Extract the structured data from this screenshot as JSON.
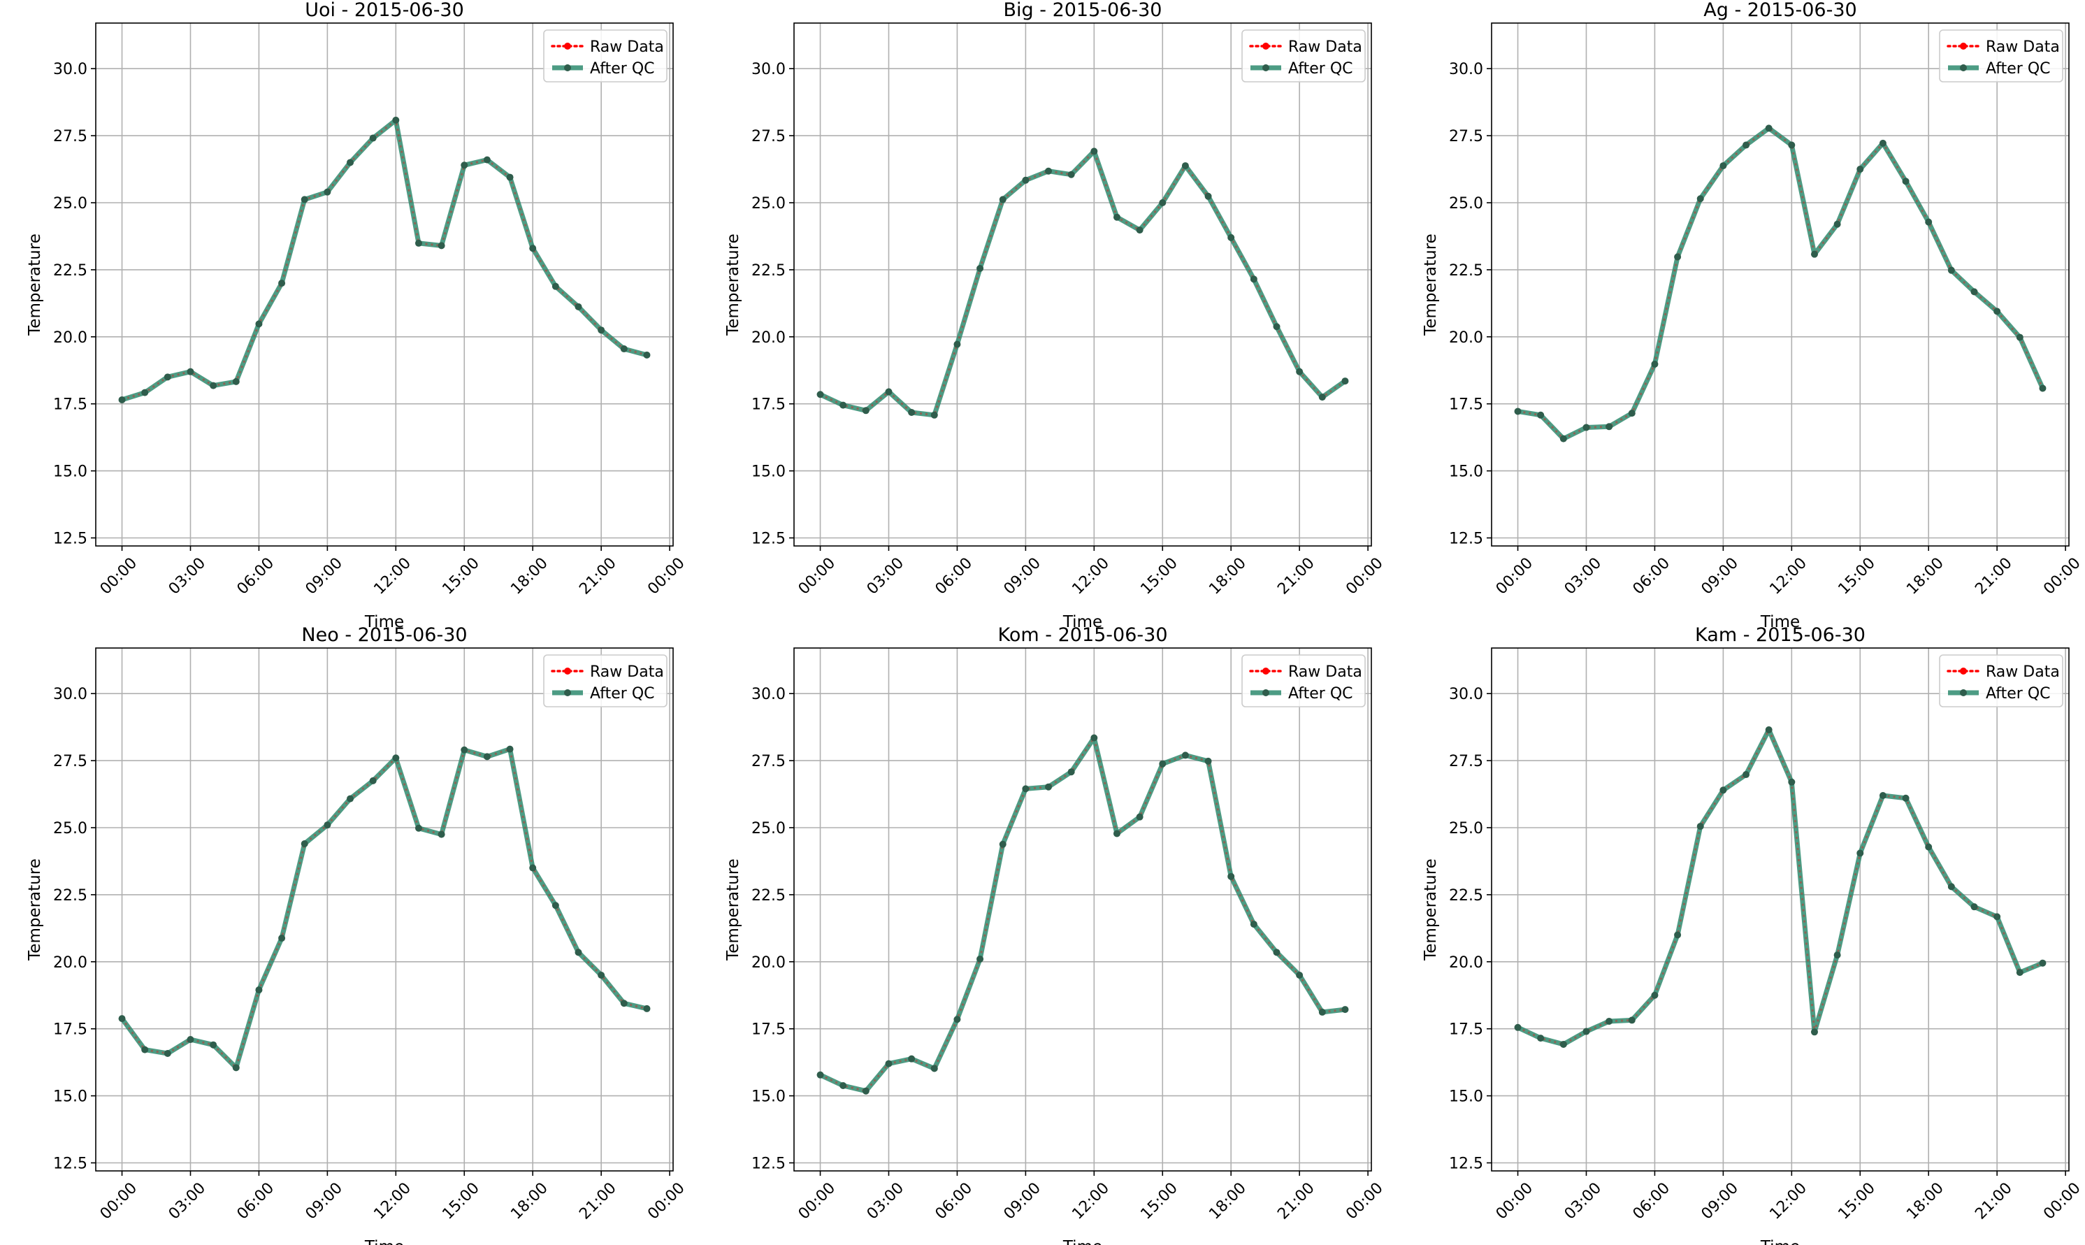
{
  "colors": {
    "raw": "#ff0000",
    "qc": "#2e8b6e",
    "grid": "#b0b0b0",
    "axis": "#000000",
    "legend_border": "#cccccc"
  },
  "legend": {
    "raw_label": "Raw Data",
    "qc_label": "After QC"
  },
  "axes_common": {
    "xlabel": "Time",
    "ylabel": "Temperature",
    "xlim_hours": [
      -1.15,
      24.15
    ],
    "ylim": [
      12.2,
      31.7
    ],
    "xticks": [
      "00:00",
      "03:00",
      "06:00",
      "09:00",
      "12:00",
      "15:00",
      "18:00",
      "21:00",
      "00:00"
    ],
    "xtick_hours": [
      0,
      3,
      6,
      9,
      12,
      15,
      18,
      21,
      24
    ],
    "yticks": [
      "12.5",
      "15.0",
      "17.5",
      "20.0",
      "22.5",
      "25.0",
      "27.5",
      "30.0"
    ],
    "ytick_values": [
      12.5,
      15.0,
      17.5,
      20.0,
      22.5,
      25.0,
      27.5,
      30.0
    ],
    "grid": true,
    "legend_position": "top-right"
  },
  "chart_data": [
    {
      "type": "line",
      "title": "Uoi - 2015-06-30",
      "x": [
        "00:00",
        "01:00",
        "02:00",
        "03:00",
        "04:00",
        "05:00",
        "06:00",
        "07:00",
        "08:00",
        "09:00",
        "10:00",
        "11:00",
        "12:00",
        "13:00",
        "14:00",
        "15:00",
        "16:00",
        "17:00",
        "18:00",
        "19:00",
        "20:00",
        "21:00",
        "22:00",
        "23:00"
      ],
      "series": [
        {
          "name": "Raw Data",
          "values": [
            17.65,
            17.92,
            18.5,
            18.7,
            18.18,
            18.33,
            20.48,
            22.0,
            25.12,
            25.4,
            26.5,
            27.41,
            28.08,
            23.49,
            23.4,
            26.4,
            26.6,
            25.95,
            23.3,
            21.88,
            21.12,
            20.25,
            19.55,
            19.32
          ]
        },
        {
          "name": "After QC",
          "values": [
            17.65,
            17.92,
            18.5,
            18.7,
            18.18,
            18.33,
            20.48,
            22.0,
            25.12,
            25.4,
            26.5,
            27.41,
            28.08,
            23.49,
            23.4,
            26.4,
            26.6,
            25.95,
            23.3,
            21.88,
            21.12,
            20.25,
            19.55,
            19.32
          ]
        }
      ]
    },
    {
      "type": "line",
      "title": "Big - 2015-06-30",
      "x": [
        "00:00",
        "01:00",
        "02:00",
        "03:00",
        "04:00",
        "05:00",
        "06:00",
        "07:00",
        "08:00",
        "09:00",
        "10:00",
        "11:00",
        "12:00",
        "13:00",
        "14:00",
        "15:00",
        "16:00",
        "17:00",
        "18:00",
        "19:00",
        "20:00",
        "21:00",
        "22:00",
        "23:00"
      ],
      "series": [
        {
          "name": "Raw Data",
          "values": [
            17.85,
            17.45,
            17.25,
            17.95,
            17.18,
            17.08,
            19.72,
            22.55,
            25.12,
            25.84,
            26.18,
            26.05,
            26.92,
            24.46,
            23.98,
            25.0,
            26.38,
            25.24,
            23.7,
            22.15,
            20.38,
            18.7,
            17.75,
            18.35
          ]
        },
        {
          "name": "After QC",
          "values": [
            17.85,
            17.45,
            17.25,
            17.95,
            17.18,
            17.08,
            19.72,
            22.55,
            25.12,
            25.84,
            26.18,
            26.05,
            26.92,
            24.46,
            23.98,
            25.0,
            26.38,
            25.24,
            23.7,
            22.15,
            20.38,
            18.7,
            17.75,
            18.35
          ]
        }
      ]
    },
    {
      "type": "line",
      "title": "Ag - 2015-06-30",
      "x": [
        "00:00",
        "01:00",
        "02:00",
        "03:00",
        "04:00",
        "05:00",
        "06:00",
        "07:00",
        "08:00",
        "09:00",
        "10:00",
        "11:00",
        "12:00",
        "13:00",
        "14:00",
        "15:00",
        "16:00",
        "17:00",
        "18:00",
        "19:00",
        "20:00",
        "21:00",
        "22:00",
        "23:00"
      ],
      "series": [
        {
          "name": "Raw Data",
          "values": [
            17.22,
            17.08,
            16.2,
            16.62,
            16.65,
            17.15,
            18.98,
            22.98,
            25.15,
            26.38,
            27.15,
            27.78,
            27.15,
            23.08,
            24.2,
            26.25,
            27.22,
            25.8,
            24.28,
            22.48,
            21.68,
            20.95,
            19.98,
            18.08
          ]
        },
        {
          "name": "After QC",
          "values": [
            17.22,
            17.08,
            16.2,
            16.62,
            16.65,
            17.15,
            18.98,
            22.98,
            25.15,
            26.38,
            27.15,
            27.78,
            27.15,
            23.08,
            24.2,
            26.25,
            27.22,
            25.8,
            24.28,
            22.48,
            21.68,
            20.95,
            19.98,
            18.08
          ]
        }
      ]
    },
    {
      "type": "line",
      "title": "Neo - 2015-06-30",
      "x": [
        "00:00",
        "01:00",
        "02:00",
        "03:00",
        "04:00",
        "05:00",
        "06:00",
        "07:00",
        "08:00",
        "09:00",
        "10:00",
        "11:00",
        "12:00",
        "13:00",
        "14:00",
        "15:00",
        "16:00",
        "17:00",
        "18:00",
        "19:00",
        "20:00",
        "21:00",
        "22:00",
        "23:00"
      ],
      "series": [
        {
          "name": "Raw Data",
          "values": [
            17.88,
            16.72,
            16.58,
            17.1,
            16.9,
            16.05,
            18.95,
            20.88,
            24.4,
            25.1,
            26.08,
            26.75,
            27.6,
            24.98,
            24.75,
            27.9,
            27.65,
            27.93,
            23.5,
            22.1,
            20.35,
            19.5,
            18.45,
            18.25
          ]
        },
        {
          "name": "After QC",
          "values": [
            17.88,
            16.72,
            16.58,
            17.1,
            16.9,
            16.05,
            18.95,
            20.88,
            24.4,
            25.1,
            26.08,
            26.75,
            27.6,
            24.98,
            24.75,
            27.9,
            27.65,
            27.93,
            23.5,
            22.1,
            20.35,
            19.5,
            18.45,
            18.25
          ]
        }
      ]
    },
    {
      "type": "line",
      "title": "Kom - 2015-06-30",
      "x": [
        "00:00",
        "01:00",
        "02:00",
        "03:00",
        "04:00",
        "05:00",
        "06:00",
        "07:00",
        "08:00",
        "09:00",
        "10:00",
        "11:00",
        "12:00",
        "13:00",
        "14:00",
        "15:00",
        "16:00",
        "17:00",
        "18:00",
        "19:00",
        "20:00",
        "21:00",
        "22:00",
        "23:00"
      ],
      "series": [
        {
          "name": "Raw Data",
          "values": [
            15.78,
            15.38,
            15.18,
            16.2,
            16.38,
            16.02,
            17.85,
            20.1,
            24.38,
            26.45,
            26.52,
            27.08,
            28.35,
            24.78,
            25.4,
            27.38,
            27.7,
            27.48,
            23.18,
            21.4,
            20.35,
            19.5,
            18.12,
            18.22
          ]
        },
        {
          "name": "After QC",
          "values": [
            15.78,
            15.38,
            15.18,
            16.2,
            16.38,
            16.02,
            17.85,
            20.1,
            24.38,
            26.45,
            26.52,
            27.08,
            28.35,
            24.78,
            25.4,
            27.38,
            27.7,
            27.48,
            23.18,
            21.4,
            20.35,
            19.5,
            18.12,
            18.22
          ]
        }
      ]
    },
    {
      "type": "line",
      "title": "Kam - 2015-06-30",
      "x": [
        "00:00",
        "01:00",
        "02:00",
        "03:00",
        "04:00",
        "05:00",
        "06:00",
        "07:00",
        "08:00",
        "09:00",
        "10:00",
        "11:00",
        "12:00",
        "13:00",
        "14:00",
        "15:00",
        "16:00",
        "17:00",
        "18:00",
        "19:00",
        "20:00",
        "21:00",
        "22:00",
        "23:00"
      ],
      "series": [
        {
          "name": "Raw Data",
          "values": [
            17.55,
            17.15,
            16.92,
            17.4,
            17.78,
            17.82,
            18.75,
            21.0,
            25.05,
            26.4,
            26.98,
            28.65,
            26.7,
            17.38,
            20.25,
            24.05,
            26.2,
            26.1,
            24.28,
            22.8,
            22.05,
            21.68,
            19.6,
            19.95
          ]
        },
        {
          "name": "After QC",
          "values": [
            17.55,
            17.15,
            16.92,
            17.4,
            17.78,
            17.82,
            18.75,
            21.0,
            25.05,
            26.4,
            26.98,
            28.65,
            26.7,
            17.38,
            20.25,
            24.05,
            26.2,
            26.1,
            24.28,
            22.8,
            22.05,
            21.68,
            19.6,
            19.95
          ]
        }
      ]
    }
  ]
}
